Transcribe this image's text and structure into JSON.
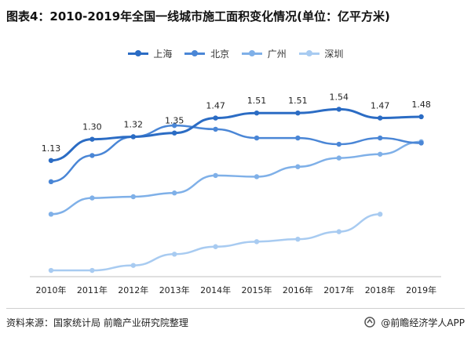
{
  "header": {
    "title": "图表4：2010-2019年全国一线城市施工面积变化情况(单位：亿平方米)"
  },
  "chart_data": {
    "type": "line",
    "title": "图表4：2010-2019年全国一线城市施工面积变化情况(单位：亿平方米)",
    "categories": [
      "2010年",
      "2011年",
      "2012年",
      "2013年",
      "2014年",
      "2015年",
      "2016年",
      "2017年",
      "2018年",
      "2019年"
    ],
    "ylim": [
      0.2,
      1.85
    ],
    "grid": false,
    "legend_position": "top",
    "series": [
      {
        "name": "上海",
        "color": "#2b6cc4",
        "width": 3,
        "values": [
          1.13,
          1.3,
          1.32,
          1.35,
          1.47,
          1.51,
          1.51,
          1.54,
          1.47,
          1.48
        ],
        "labels": [
          "1.13",
          "1.30",
          "1.32",
          "1.35",
          "1.47",
          "1.51",
          "1.51",
          "1.54",
          "1.47",
          "1.48"
        ]
      },
      {
        "name": "北京",
        "color": "#4a86d6",
        "width": 2.5,
        "values": [
          0.96,
          1.17,
          1.32,
          1.41,
          1.38,
          1.31,
          1.31,
          1.26,
          1.31,
          1.27
        ],
        "labels": []
      },
      {
        "name": "广州",
        "color": "#7fb0e8",
        "width": 2.5,
        "values": [
          0.7,
          0.83,
          0.84,
          0.87,
          1.01,
          1.0,
          1.08,
          1.15,
          1.18,
          1.28
        ],
        "labels": []
      },
      {
        "name": "深圳",
        "color": "#a8cbf1",
        "width": 2.5,
        "values": [
          0.25,
          0.25,
          0.29,
          0.38,
          0.44,
          0.48,
          0.5,
          0.56,
          0.7,
          null
        ],
        "labels": []
      }
    ]
  },
  "footer": {
    "source": "资料来源：国家统计局 前瞻产业研究院整理",
    "brand": "@前瞻经济学人APP"
  }
}
